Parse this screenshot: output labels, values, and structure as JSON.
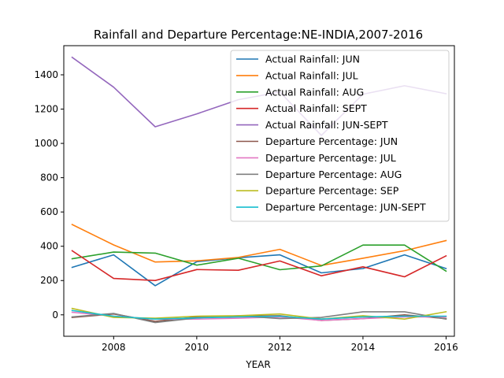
{
  "chart_data": {
    "type": "line",
    "title": "Rainfall and Departure Percentage:NE-INDIA,2007-2016",
    "xlabel": "YEAR",
    "ylabel": "",
    "x": [
      2007,
      2008,
      2009,
      2010,
      2011,
      2012,
      2013,
      2014,
      2015,
      2016
    ],
    "xlim": [
      2006.8,
      2016.2
    ],
    "ylim": [
      -125,
      1570
    ],
    "xticks": [
      2008,
      2010,
      2012,
      2014,
      2016
    ],
    "yticks": [
      0,
      200,
      400,
      600,
      800,
      1000,
      1200,
      1400
    ],
    "grid": false,
    "legend": "upper-right",
    "series": [
      {
        "name": "Actual Rainfall: JUN",
        "color": "#1f77b4",
        "values": [
          277,
          350,
          170,
          310,
          333,
          350,
          245,
          270,
          350,
          270
        ]
      },
      {
        "name": "Actual Rainfall: JUL",
        "color": "#ff7f0e",
        "values": [
          527,
          408,
          308,
          315,
          335,
          382,
          288,
          330,
          374,
          433
        ]
      },
      {
        "name": "Actual Rainfall: AUG",
        "color": "#2ca02c",
        "values": [
          327,
          366,
          360,
          290,
          330,
          263,
          285,
          407,
          407,
          255
        ]
      },
      {
        "name": "Actual Rainfall: SEPT",
        "color": "#d62728",
        "values": [
          374,
          212,
          200,
          264,
          260,
          314,
          228,
          280,
          222,
          344
        ]
      },
      {
        "name": "Actual Rainfall: JUN-SEPT",
        "color": "#9467bd",
        "values": [
          1502,
          1328,
          1097,
          1172,
          1255,
          1300,
          1047,
          1287,
          1336,
          1290
        ]
      },
      {
        "name": "Departure Percentage: JUN",
        "color": "#8c564b",
        "values": [
          -15,
          5,
          -38,
          -12,
          -8,
          -5,
          -33,
          -22,
          0,
          -22
        ]
      },
      {
        "name": "Departure Percentage: JUL",
        "color": "#e377c2",
        "values": [
          15,
          -8,
          -25,
          -25,
          -20,
          -12,
          -32,
          -22,
          -12,
          -12
        ]
      },
      {
        "name": "Departure Percentage: AUG",
        "color": "#7f7f7f",
        "values": [
          -12,
          8,
          -45,
          -18,
          -5,
          -22,
          -15,
          18,
          18,
          -25
        ]
      },
      {
        "name": "Departure Percentage: SEP",
        "color": "#bcbd22",
        "values": [
          37,
          -15,
          -20,
          -8,
          -5,
          5,
          -25,
          -5,
          -25,
          18
        ]
      },
      {
        "name": "Departure Percentage: JUN-SEPT",
        "color": "#17becf",
        "values": [
          25,
          -8,
          -25,
          -18,
          -12,
          -8,
          -25,
          -12,
          -8,
          -8
        ]
      }
    ]
  }
}
